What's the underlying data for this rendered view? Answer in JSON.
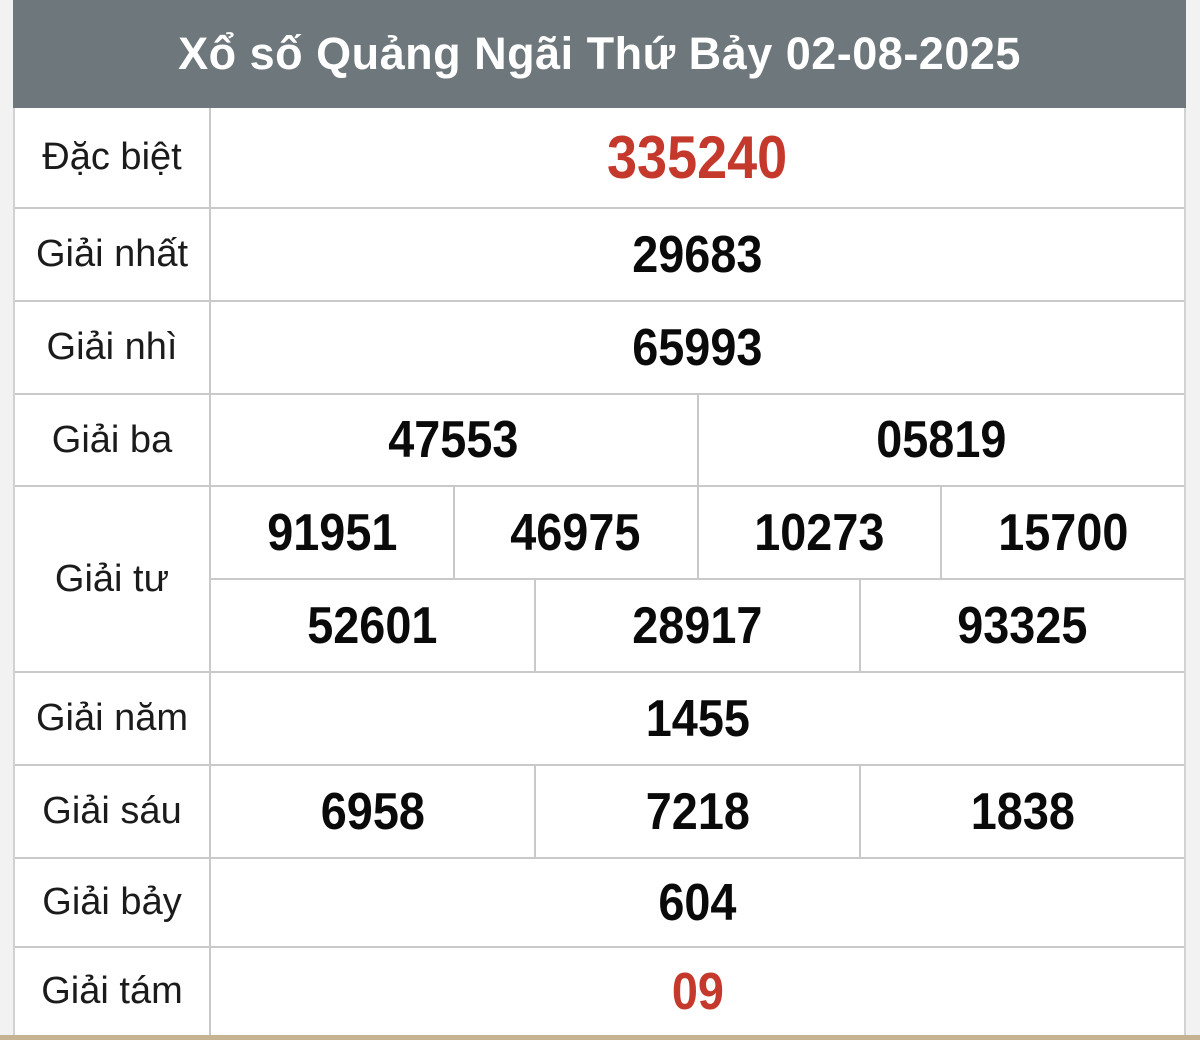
{
  "header": {
    "title": "Xổ số Quảng Ngãi Thứ Bảy 02-08-2025"
  },
  "colors": {
    "header_bg": "#6e777b",
    "title_color": "#ffffff",
    "highlight_red": "#c4392b",
    "number_color": "#0a0a0a",
    "border": "#c9c9c9",
    "page_bg": "#f2f2f3",
    "bottom_accent": "#c5b394"
  },
  "table": {
    "rows": [
      {
        "label": "Đặc biệt",
        "highlight": true,
        "values": [
          "335240"
        ]
      },
      {
        "label": "Giải nhất",
        "highlight": false,
        "values": [
          "29683"
        ]
      },
      {
        "label": "Giải nhì",
        "highlight": false,
        "values": [
          "65993"
        ]
      },
      {
        "label": "Giải ba",
        "highlight": false,
        "values": [
          "47553",
          "05819"
        ]
      },
      {
        "label": "Giải tư",
        "highlight": false,
        "value_rows": [
          [
            "91951",
            "46975",
            "10273",
            "15700"
          ],
          [
            "52601",
            "28917",
            "93325"
          ]
        ]
      },
      {
        "label": "Giải năm",
        "highlight": false,
        "values": [
          "1455"
        ]
      },
      {
        "label": "Giải sáu",
        "highlight": false,
        "values": [
          "6958",
          "7218",
          "1838"
        ]
      },
      {
        "label": "Giải bảy",
        "highlight": false,
        "values": [
          "604"
        ]
      },
      {
        "label": "Giải tám",
        "highlight": true,
        "values": [
          "09"
        ]
      }
    ]
  }
}
